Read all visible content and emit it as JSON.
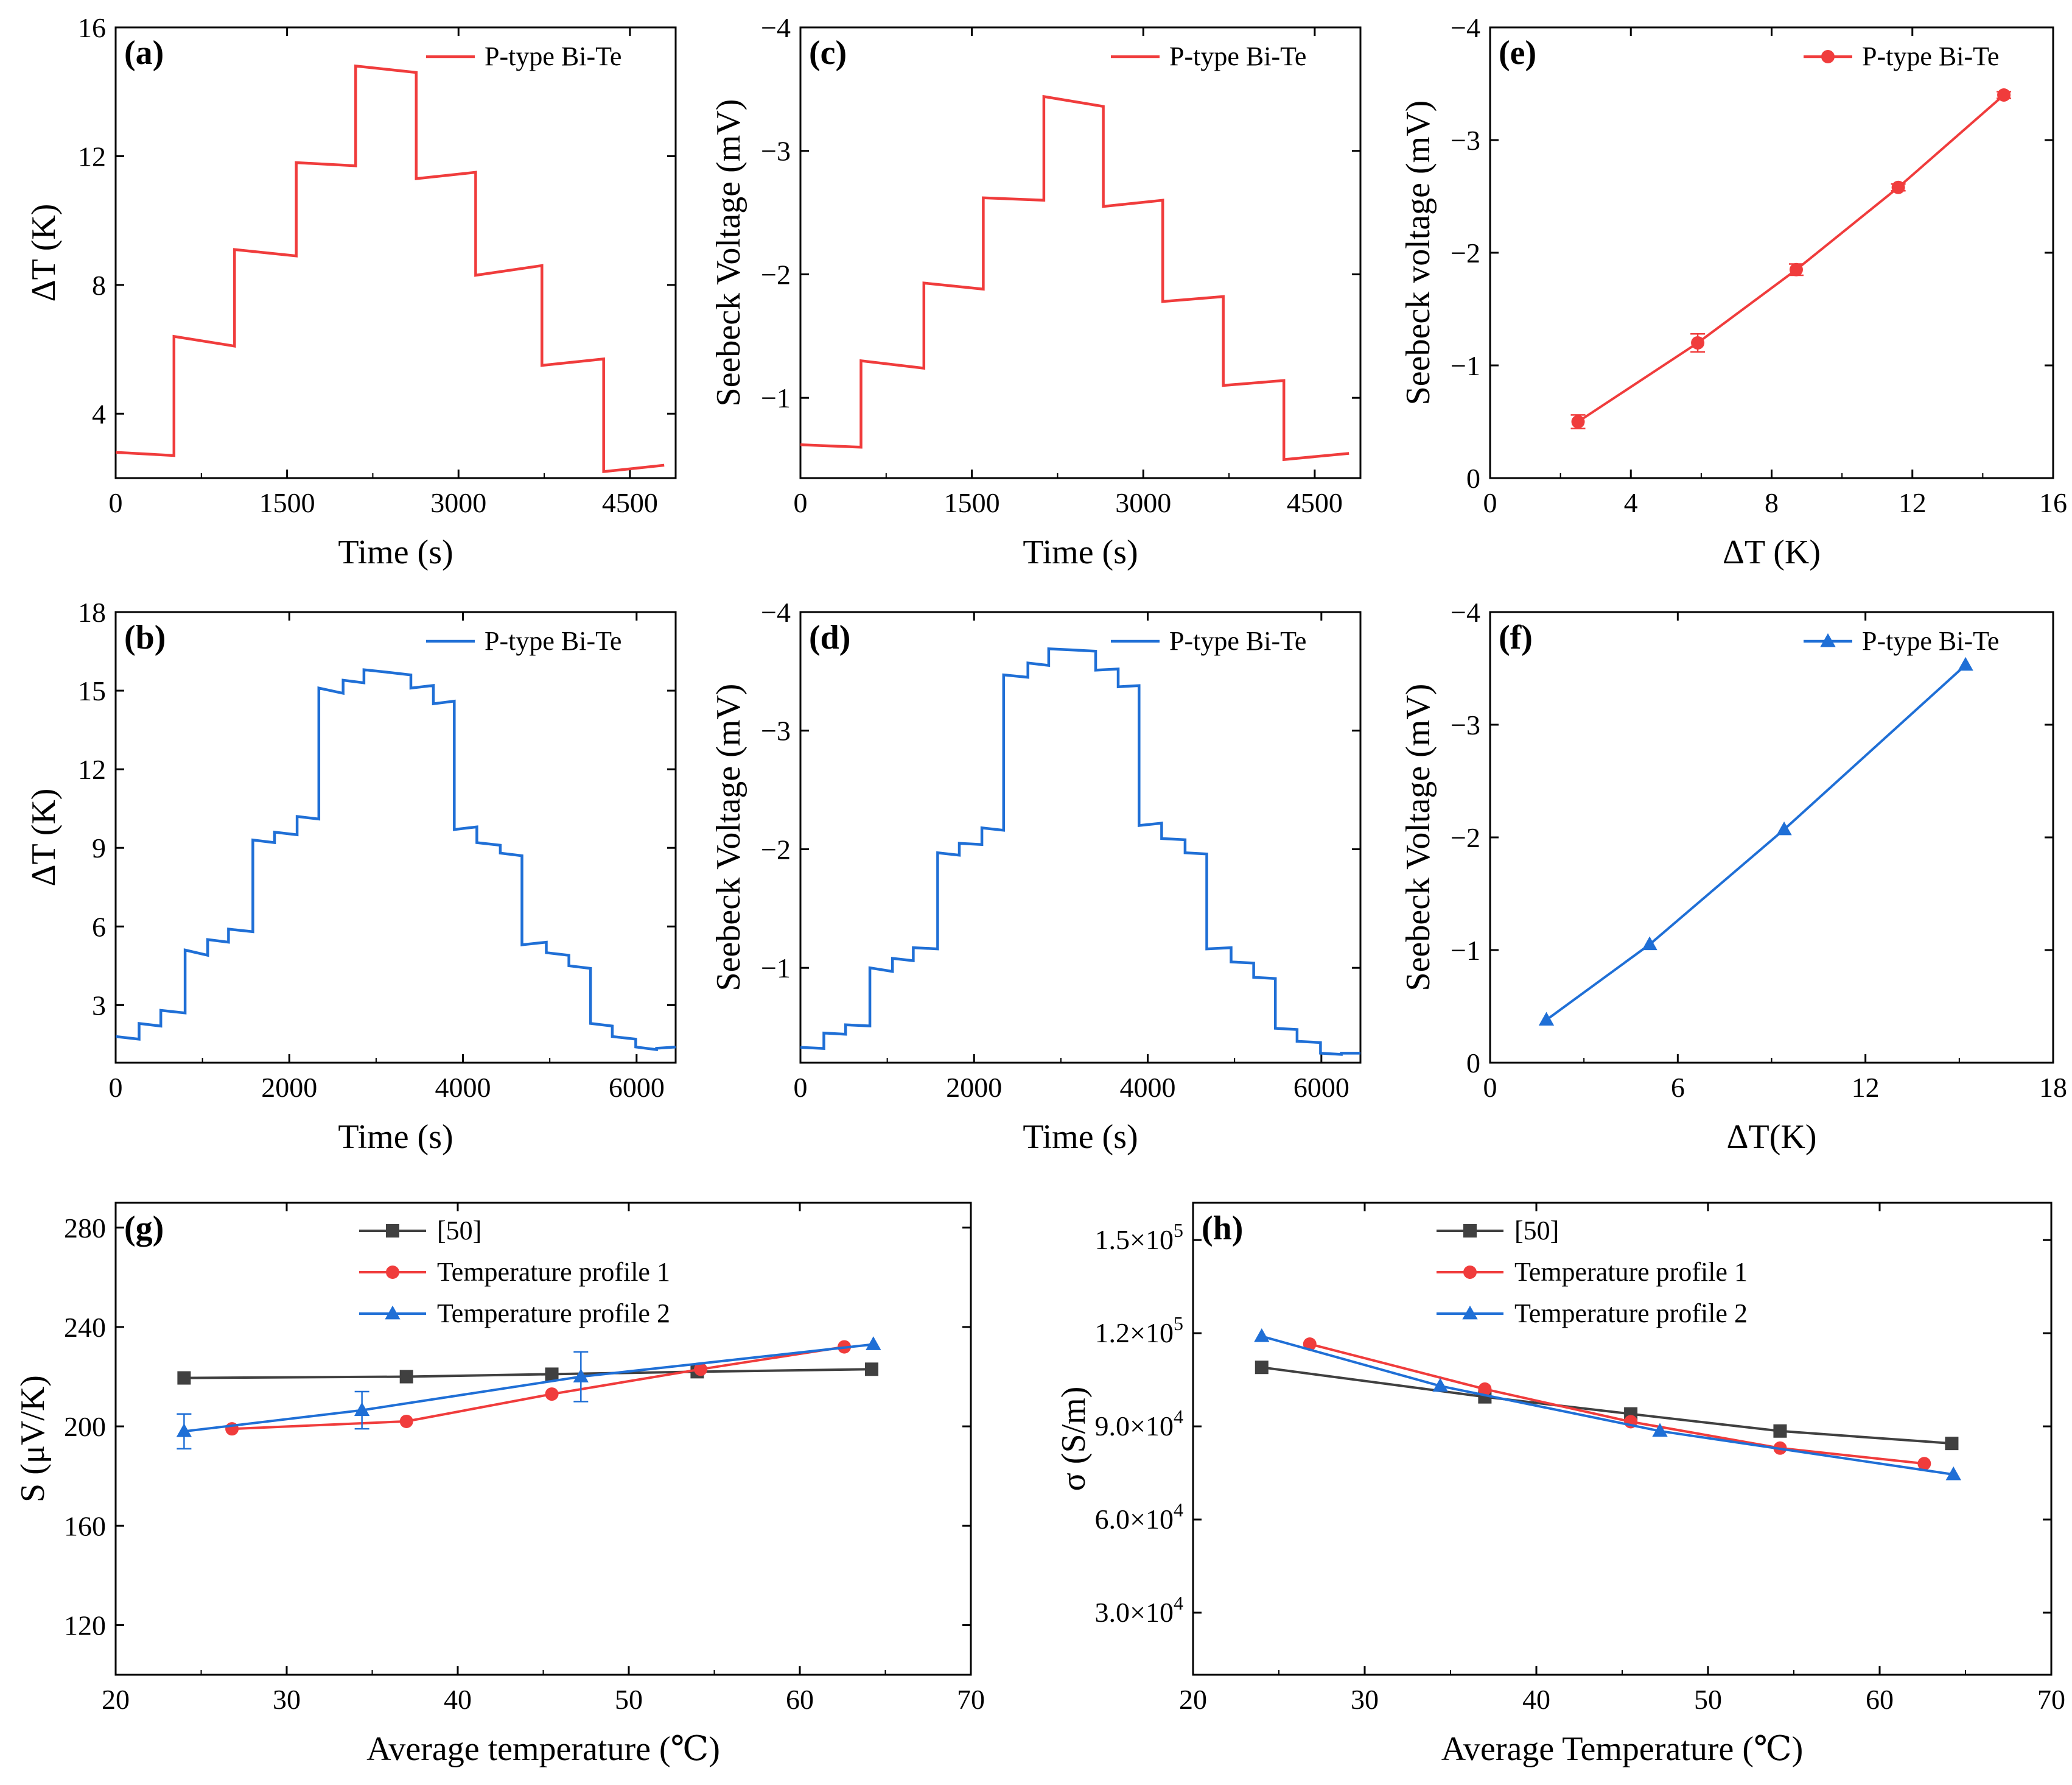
{
  "colors": {
    "red": "#f03c3c",
    "blue": "#1f6fd6",
    "gray": "#404040"
  },
  "chart_data": [
    {
      "id": "a",
      "panel": "(a)",
      "type": "line",
      "xlabel": "Time (s)",
      "ylabel": "ΔT (K)",
      "xlim": [
        0,
        4900
      ],
      "ylim": [
        2,
        16
      ],
      "invert_y": false,
      "xticks": [
        0,
        1500,
        3000,
        4500
      ],
      "yticks": [
        4,
        8,
        12,
        16
      ],
      "xtick_labels": [
        "0",
        "1500",
        "3000",
        "4500"
      ],
      "ytick_labels": [
        "4",
        "8",
        "12",
        "16"
      ],
      "legend": {
        "position": "top-right",
        "marker": "none"
      },
      "series": [
        {
          "name": "P-type Bi-Te",
          "color": "red",
          "x": [
            0,
            510,
            510,
            1040,
            1040,
            1580,
            1580,
            2100,
            2100,
            2630,
            2630,
            3150,
            3150,
            3730,
            3730,
            4270,
            4270,
            4800
          ],
          "y": [
            2.8,
            2.7,
            6.4,
            6.1,
            9.1,
            8.9,
            11.8,
            11.7,
            14.8,
            14.6,
            11.3,
            11.5,
            8.3,
            8.6,
            5.5,
            5.7,
            2.2,
            2.4
          ]
        }
      ]
    },
    {
      "id": "c",
      "panel": "(c)",
      "type": "line",
      "xlabel": "Time (s)",
      "ylabel": "Seebeck Voltage (mV)",
      "xlim": [
        0,
        4900
      ],
      "ylim": [
        -0.35,
        -4
      ],
      "invert_y": true,
      "xticks": [
        0,
        1500,
        3000,
        4500
      ],
      "yticks": [
        -1,
        -2,
        -3,
        -4
      ],
      "xtick_labels": [
        "0",
        "1500",
        "3000",
        "4500"
      ],
      "ytick_labels": [
        "−1",
        "−2",
        "−3",
        "−4"
      ],
      "legend": {
        "position": "top-right",
        "marker": "none"
      },
      "series": [
        {
          "name": "P-type Bi-Te",
          "color": "red",
          "x": [
            0,
            530,
            530,
            1080,
            1080,
            1600,
            1600,
            2130,
            2130,
            2650,
            2650,
            3170,
            3170,
            3700,
            3700,
            4230,
            4230,
            4800
          ],
          "y": [
            -0.62,
            -0.6,
            -1.3,
            -1.24,
            -1.93,
            -1.88,
            -2.62,
            -2.6,
            -3.44,
            -3.36,
            -2.55,
            -2.6,
            -1.78,
            -1.82,
            -1.1,
            -1.14,
            -0.5,
            -0.55
          ]
        }
      ]
    },
    {
      "id": "e",
      "panel": "(e)",
      "type": "line",
      "xlabel": "ΔT (K)",
      "ylabel": "Seebeck voltage (mV)",
      "xlim": [
        0,
        16
      ],
      "ylim": [
        0,
        -4
      ],
      "invert_y": true,
      "xticks": [
        0,
        4,
        8,
        12,
        16
      ],
      "yticks": [
        0,
        -1,
        -2,
        -3,
        -4
      ],
      "xtick_labels": [
        "0",
        "4",
        "8",
        "12",
        "16"
      ],
      "ytick_labels": [
        "0",
        "−1",
        "−2",
        "−3",
        "−4"
      ],
      "legend": {
        "position": "top-right",
        "marker": "circle"
      },
      "series": [
        {
          "name": "P-type Bi-Te",
          "color": "red",
          "marker": "circle",
          "x": [
            2.5,
            5.9,
            8.7,
            11.6,
            14.6
          ],
          "y": [
            -0.5,
            -1.2,
            -1.85,
            -2.58,
            -3.4
          ],
          "err": [
            0.06,
            0.08,
            0.05,
            0.03,
            0.03
          ]
        }
      ]
    },
    {
      "id": "b",
      "panel": "(b)",
      "type": "line",
      "xlabel": "Time (s)",
      "ylabel": "ΔT (K)",
      "xlim": [
        0,
        6450
      ],
      "ylim": [
        0.8,
        18
      ],
      "invert_y": false,
      "xticks": [
        0,
        2000,
        4000,
        6000
      ],
      "yticks": [
        3,
        6,
        9,
        12,
        15,
        18
      ],
      "xtick_labels": [
        "0",
        "2000",
        "4000",
        "6000"
      ],
      "ytick_labels": [
        "3",
        "6",
        "9",
        "12",
        "15",
        "18"
      ],
      "legend": {
        "position": "top-right",
        "marker": "none"
      },
      "series": [
        {
          "name": "P-type Bi-Te",
          "color": "blue",
          "x": [
            0,
            270,
            270,
            520,
            520,
            800,
            800,
            1060,
            1060,
            1300,
            1300,
            1580,
            1580,
            1830,
            1830,
            2090,
            2090,
            2340,
            2340,
            2620,
            2620,
            2860,
            2860,
            3140,
            3140,
            3400,
            3400,
            3660,
            3660,
            3900,
            3900,
            4160,
            4160,
            4430,
            4430,
            4680,
            4680,
            4960,
            4960,
            5220,
            5220,
            5470,
            5470,
            5720,
            5720,
            5990,
            5990,
            6230,
            6230,
            6450
          ],
          "y": [
            1.8,
            1.7,
            2.3,
            2.2,
            2.8,
            2.7,
            5.1,
            4.9,
            5.5,
            5.4,
            5.9,
            5.8,
            9.3,
            9.2,
            9.6,
            9.5,
            10.2,
            10.1,
            15.1,
            14.9,
            15.4,
            15.3,
            15.8,
            15.7,
            15.7,
            15.6,
            15.1,
            15.2,
            14.5,
            14.6,
            9.7,
            9.8,
            9.2,
            9.1,
            8.8,
            8.7,
            5.3,
            5.4,
            5.0,
            4.9,
            4.5,
            4.4,
            2.3,
            2.2,
            1.8,
            1.7,
            1.4,
            1.3,
            1.35,
            1.4
          ]
        }
      ]
    },
    {
      "id": "d",
      "panel": "(d)",
      "type": "line",
      "xlabel": "Time (s)",
      "ylabel": "Seebeck Voltage (mV)",
      "xlim": [
        0,
        6450
      ],
      "ylim": [
        -0.2,
        -4
      ],
      "invert_y": true,
      "xticks": [
        0,
        2000,
        4000,
        6000
      ],
      "yticks": [
        -1,
        -2,
        -3,
        -4
      ],
      "xtick_labels": [
        "0",
        "2000",
        "4000",
        "6000"
      ],
      "ytick_labels": [
        "−1",
        "−2",
        "−3",
        "−4"
      ],
      "legend": {
        "position": "top-right",
        "marker": "none"
      },
      "series": [
        {
          "name": "P-type Bi-Te",
          "color": "blue",
          "x": [
            0,
            270,
            270,
            520,
            520,
            800,
            800,
            1060,
            1060,
            1300,
            1300,
            1580,
            1580,
            1830,
            1830,
            2090,
            2090,
            2340,
            2340,
            2620,
            2620,
            2860,
            2860,
            3140,
            3140,
            3400,
            3400,
            3660,
            3660,
            3900,
            3900,
            4160,
            4160,
            4430,
            4430,
            4680,
            4680,
            4960,
            4960,
            5220,
            5220,
            5470,
            5470,
            5720,
            5720,
            5990,
            5990,
            6230,
            6230,
            6450
          ],
          "y": [
            -0.33,
            -0.32,
            -0.45,
            -0.44,
            -0.52,
            -0.51,
            -1.0,
            -0.97,
            -1.08,
            -1.06,
            -1.17,
            -1.16,
            -1.97,
            -1.95,
            -2.05,
            -2.04,
            -2.18,
            -2.16,
            -3.47,
            -3.45,
            -3.57,
            -3.55,
            -3.69,
            -3.68,
            -3.68,
            -3.67,
            -3.51,
            -3.52,
            -3.37,
            -3.38,
            -2.2,
            -2.22,
            -2.09,
            -2.08,
            -1.97,
            -1.96,
            -1.16,
            -1.17,
            -1.05,
            -1.04,
            -0.92,
            -0.91,
            -0.49,
            -0.48,
            -0.38,
            -0.37,
            -0.28,
            -0.27,
            -0.28,
            -0.28
          ]
        }
      ]
    },
    {
      "id": "f",
      "panel": "(f)",
      "type": "line",
      "xlabel": "ΔT(K)",
      "ylabel": "Seebeck Voltage (mV)",
      "xlim": [
        0,
        18
      ],
      "ylim": [
        0,
        -4
      ],
      "invert_y": true,
      "xticks": [
        0,
        6,
        12,
        18
      ],
      "yticks": [
        0,
        -1,
        -2,
        -3,
        -4
      ],
      "xtick_labels": [
        "0",
        "6",
        "12",
        "18"
      ],
      "ytick_labels": [
        "0",
        "−1",
        "−2",
        "−3",
        "−4"
      ],
      "legend": {
        "position": "top-right",
        "marker": "triangle"
      },
      "series": [
        {
          "name": "P-type Bi-Te",
          "color": "blue",
          "marker": "triangle",
          "x": [
            1.8,
            5.1,
            9.4,
            15.2
          ],
          "y": [
            -0.38,
            -1.05,
            -2.07,
            -3.53
          ]
        }
      ]
    },
    {
      "id": "g",
      "panel": "(g)",
      "type": "line",
      "xlabel": "Average temperature (℃)",
      "ylabel": "S (μV/K)",
      "xlim": [
        20,
        70
      ],
      "ylim": [
        100,
        290
      ],
      "invert_y": false,
      "xticks": [
        20,
        30,
        40,
        50,
        60,
        70
      ],
      "yticks": [
        120,
        160,
        200,
        240,
        280
      ],
      "xtick_labels": [
        "20",
        "30",
        "40",
        "50",
        "60",
        "70"
      ],
      "ytick_labels": [
        "120",
        "160",
        "200",
        "240",
        "280"
      ],
      "legend": {
        "position": "top-left",
        "marker": "series"
      },
      "series": [
        {
          "name": "[50]",
          "color": "gray",
          "marker": "square",
          "x": [
            24,
            37,
            45.5,
            54,
            64.2
          ],
          "y": [
            219.5,
            220,
            221,
            222,
            223
          ]
        },
        {
          "name": "Temperature profile 1",
          "color": "red",
          "marker": "circle",
          "x": [
            26.8,
            37,
            45.5,
            54.2,
            62.6
          ],
          "y": [
            199,
            202,
            213,
            223,
            232
          ]
        },
        {
          "name": "Temperature profile 2",
          "color": "blue",
          "marker": "triangle",
          "x": [
            24,
            34.4,
            47.2,
            64.3
          ],
          "y": [
            198,
            206.5,
            220,
            233
          ],
          "err": [
            7,
            7.5,
            10,
            0
          ]
        }
      ]
    },
    {
      "id": "h",
      "panel": "(h)",
      "type": "line",
      "xlabel": "Average Temperature (℃)",
      "ylabel": "σ (S/m)",
      "xlim": [
        20,
        70
      ],
      "ylim": [
        10000,
        162000
      ],
      "invert_y": false,
      "xticks": [
        20,
        30,
        40,
        50,
        60,
        70
      ],
      "yticks": [
        30000,
        60000,
        90000,
        120000,
        150000
      ],
      "xtick_labels": [
        "20",
        "30",
        "40",
        "50",
        "60",
        "70"
      ],
      "ytick_mantissas": [
        "3.0×10",
        "6.0×10",
        "9.0×10",
        "1.2×10",
        "1.5×10"
      ],
      "ytick_exponents": [
        "4",
        "4",
        "4",
        "5",
        "5"
      ],
      "legend": {
        "position": "top-left",
        "marker": "series"
      },
      "series": [
        {
          "name": "[50]",
          "color": "gray",
          "marker": "square",
          "x": [
            24,
            37,
            45.5,
            54.2,
            64.2
          ],
          "y": [
            109000,
            99500,
            94000,
            88500,
            84500
          ]
        },
        {
          "name": "Temperature profile 1",
          "color": "red",
          "marker": "circle",
          "x": [
            26.8,
            37,
            45.5,
            54.2,
            62.6
          ],
          "y": [
            116500,
            102000,
            91500,
            83000,
            78000
          ]
        },
        {
          "name": "Temperature profile 2",
          "color": "blue",
          "marker": "triangle",
          "x": [
            24,
            34.4,
            47.2,
            64.3
          ],
          "y": [
            119000,
            103000,
            88500,
            74500
          ]
        }
      ]
    }
  ]
}
